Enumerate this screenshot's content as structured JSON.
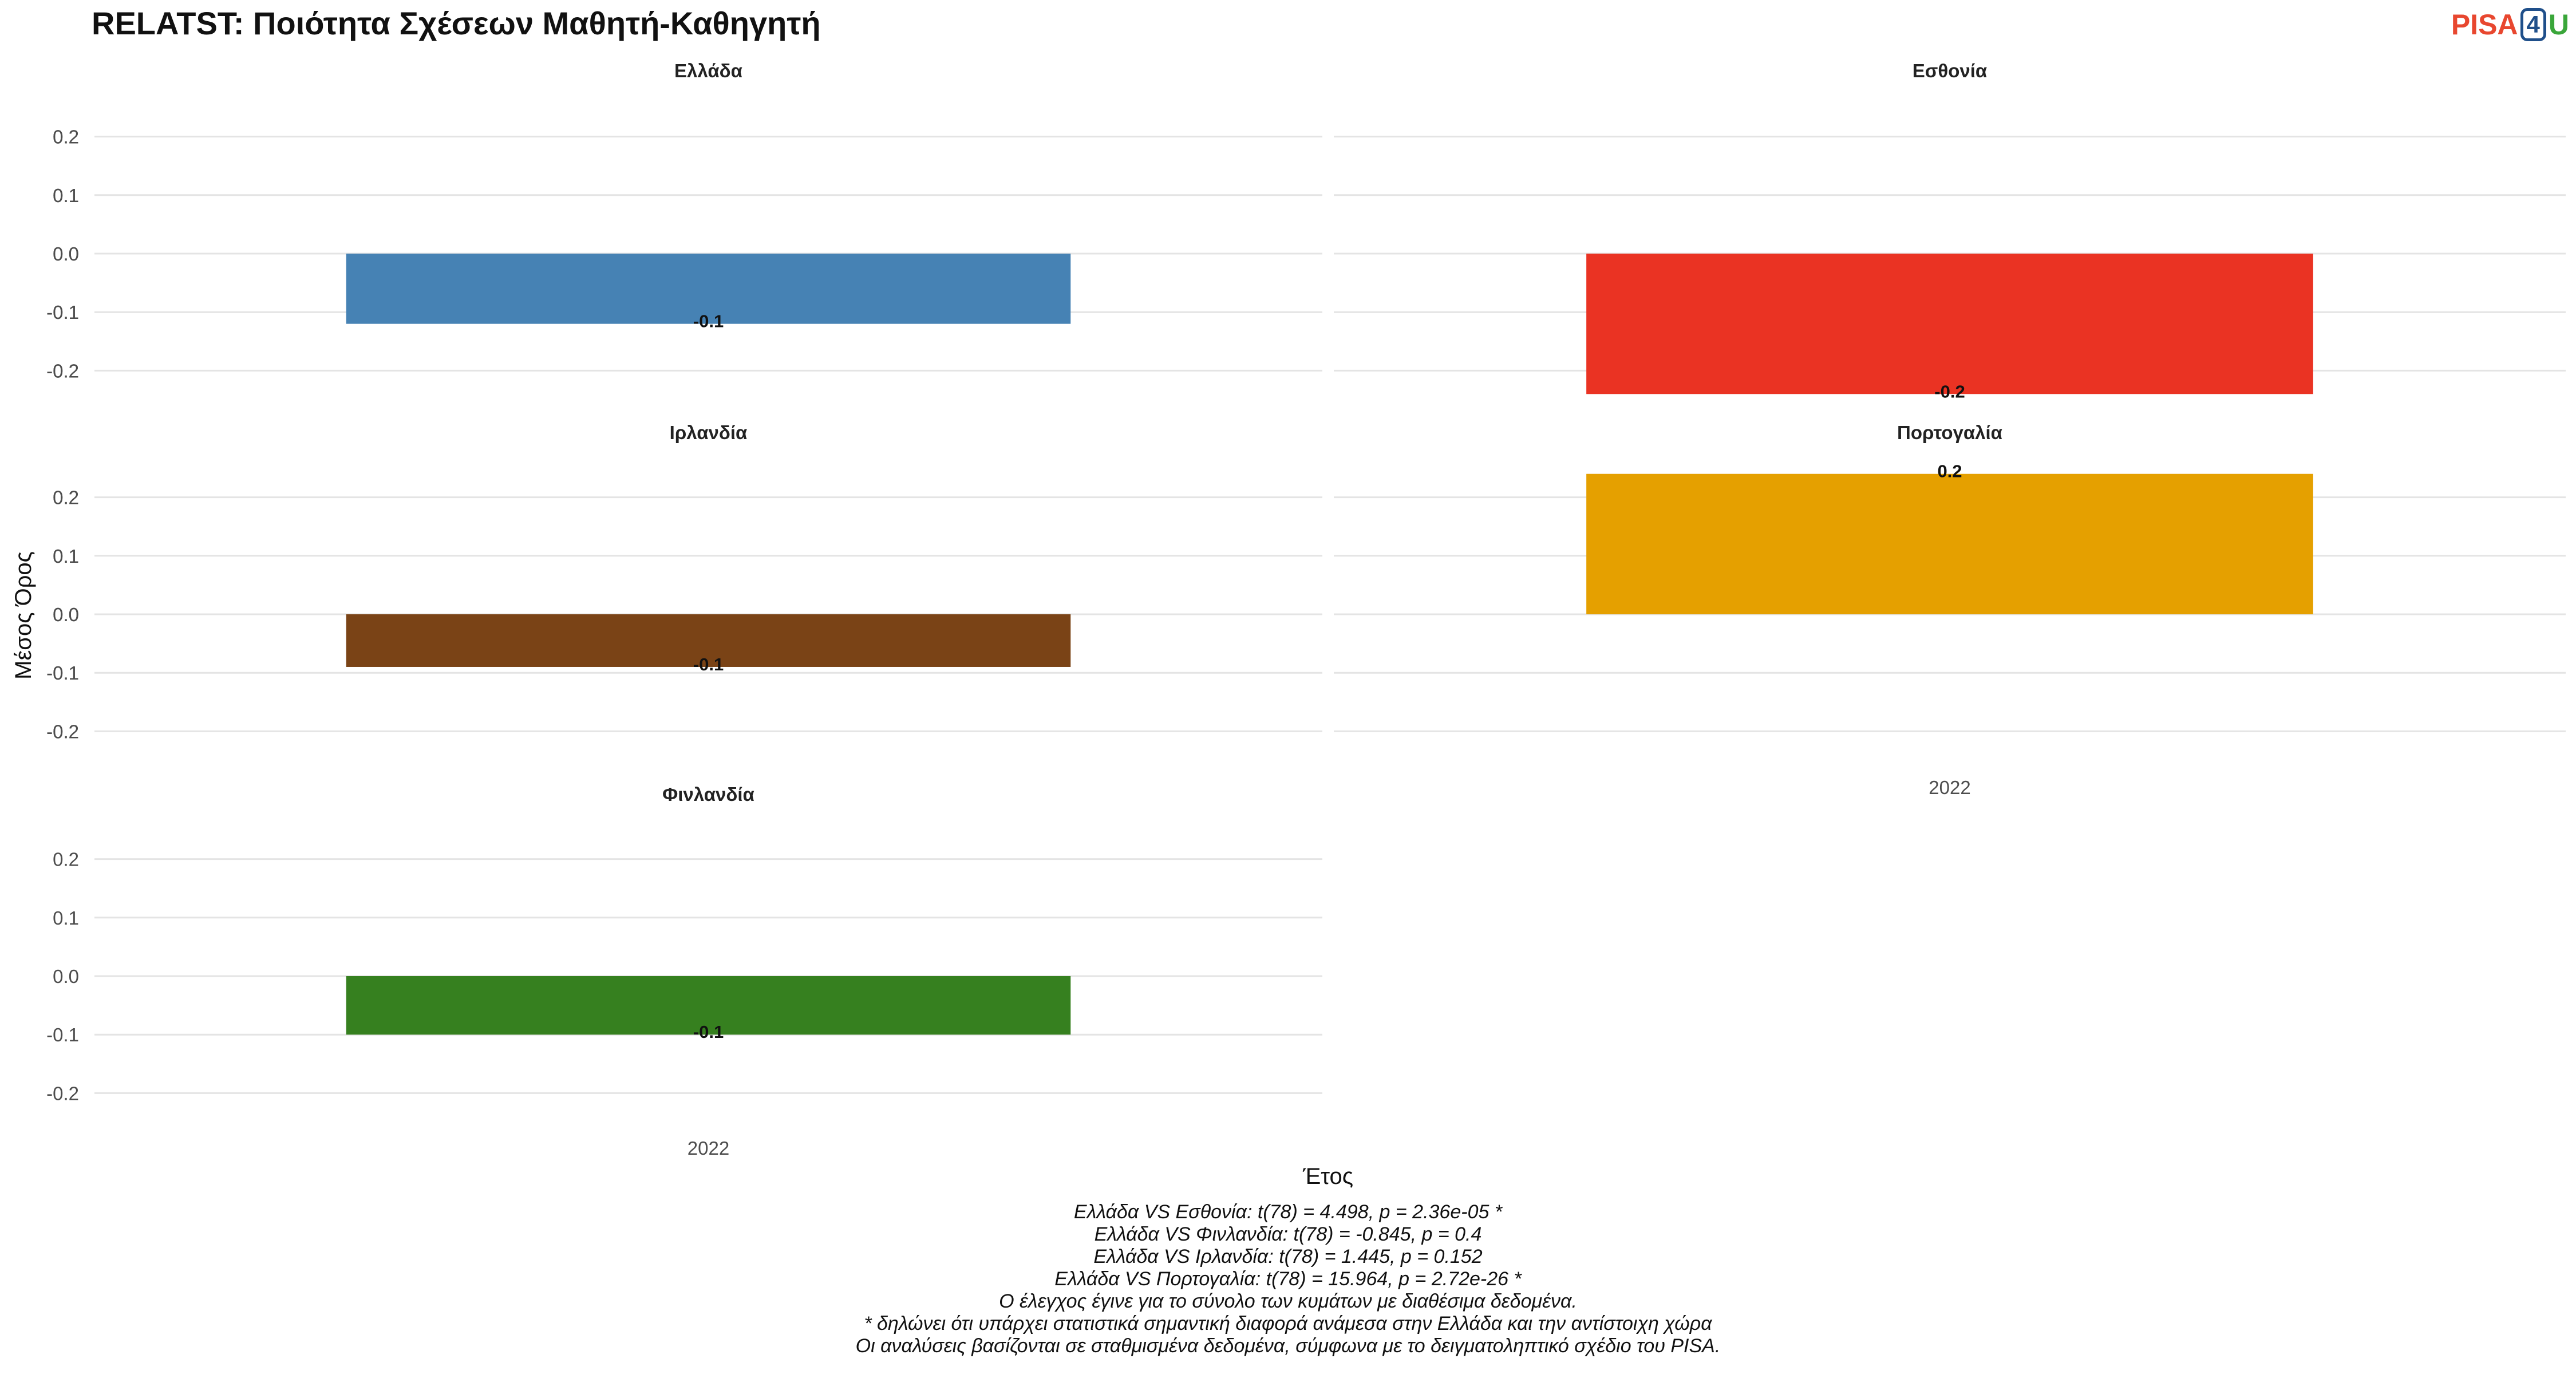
{
  "header": {
    "title": "RELATST: Ποιότητα Σχέσεων Μαθητή-Καθηγητή",
    "logo": {
      "pisa": "PISA",
      "four": "4",
      "u": "U"
    }
  },
  "chart_data": {
    "type": "bar",
    "facet_layout": "2 columns",
    "ylabel": "Μέσος Όρος",
    "xlabel": "Έτος",
    "yticks": [
      0.2,
      0.1,
      0.0,
      -0.1,
      -0.2
    ],
    "ytick_labels": [
      "0.2",
      "0.1",
      "0.0",
      "-0.1",
      "-0.2"
    ],
    "ylim": [
      -0.25,
      0.25
    ],
    "categories": [
      "2022"
    ],
    "grid": "horizontal",
    "legend": "none",
    "panels": [
      {
        "name": "Ελλάδα",
        "color": "#4682b4",
        "values": [
          -0.12
        ],
        "label": "-0.1"
      },
      {
        "name": "Εσθονία",
        "color": "#ea3323",
        "values": [
          -0.24
        ],
        "label": "-0.2"
      },
      {
        "name": "Ιρλανδία",
        "color": "#7a4316",
        "values": [
          -0.09
        ],
        "label": "-0.1"
      },
      {
        "name": "Πορτογαλία",
        "color": "#e5a000",
        "values": [
          0.24
        ],
        "label": "0.2"
      },
      {
        "name": "Φινλανδία",
        "color": "#36801f",
        "values": [
          -0.1
        ],
        "label": "-0.1"
      }
    ]
  },
  "footnotes": [
    "Ελλάδα VS Εσθονία: t(78) = 4.498, p = 2.36e-05 *",
    "Ελλάδα VS Φινλανδία: t(78) = -0.845, p = 0.4",
    "Ελλάδα VS Ιρλανδία: t(78) = 1.445, p = 0.152",
    "Ελλάδα VS Πορτογαλία: t(78) = 15.964, p = 2.72e-26 *",
    "Ο έλεγχος έγινε για το σύνολο των κυμάτων με διαθέσιμα δεδομένα.",
    "* δηλώνει ότι υπάρχει στατιστικά σημαντική διαφορά ανάμεσα στην Ελλάδα και την αντίστοιχη χώρα",
    "Οι αναλύσεις βασίζονται σε σταθμισμένα δεδομένα, σύμφωνα με το δειγματοληπτικό σχέδιο του PISA."
  ]
}
